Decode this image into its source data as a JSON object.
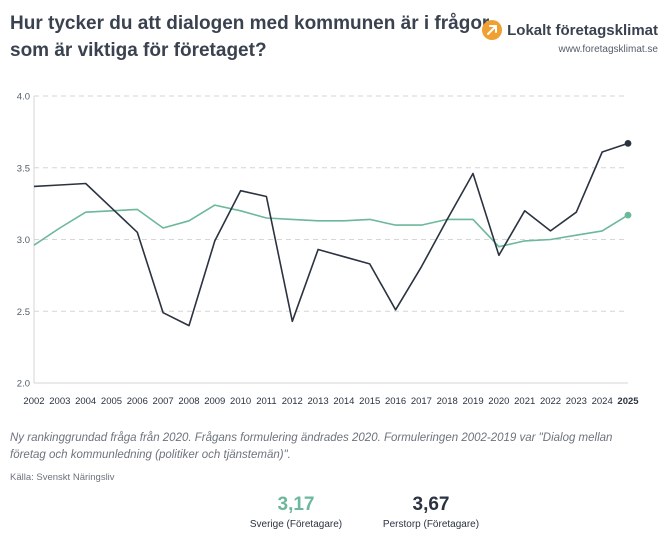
{
  "header": {
    "title": "Hur tycker du att dialogen med kommunen är i frågor som är viktiga för företaget?",
    "brand_name": "Lokalt företagsklimat",
    "brand_url": "www.foretagsklimat.se"
  },
  "colors": {
    "sverige": "#6bb89a",
    "perstorp": "#2b3340",
    "grid": "#d6d6d6",
    "brand": "#f0a030"
  },
  "chart_data": {
    "type": "line",
    "title": "Hur tycker du att dialogen med kommunen är i frågor som är viktiga för företaget?",
    "x": [
      "2002",
      "2003",
      "2004",
      "2005",
      "2006",
      "2007",
      "2008",
      "2009",
      "2010",
      "2011",
      "2012",
      "2013",
      "2014",
      "2015",
      "2016",
      "2017",
      "2018",
      "2019",
      "2020",
      "2021",
      "2022",
      "2023",
      "2024",
      "2025"
    ],
    "x_highlight": "2025",
    "y_ticks": [
      "2.0",
      "2.5",
      "3.0",
      "3.5",
      "4.0"
    ],
    "ylim": [
      2.0,
      4.0
    ],
    "series": [
      {
        "name": "Sverige (Företagare)",
        "color": "#6bb89a",
        "values": [
          2.96,
          3.08,
          3.19,
          3.2,
          3.21,
          3.08,
          3.13,
          3.24,
          3.2,
          3.15,
          3.14,
          3.13,
          3.13,
          3.14,
          3.1,
          3.1,
          3.14,
          3.14,
          2.95,
          2.99,
          3.0,
          3.03,
          3.06,
          3.17
        ]
      },
      {
        "name": "Perstorp (Företagare)",
        "color": "#2b3340",
        "values": [
          3.37,
          3.38,
          3.39,
          3.22,
          3.05,
          2.49,
          2.4,
          2.99,
          3.34,
          3.3,
          2.43,
          2.93,
          2.88,
          2.83,
          2.51,
          2.81,
          3.14,
          3.46,
          2.89,
          3.2,
          3.06,
          3.19,
          3.61,
          3.67
        ]
      }
    ]
  },
  "footnote": "Ny rankinggrundad fråga från 2020. Frågans formulering ändrades 2020. Formuleringen 2002-2019 var \"Dialog mellan företag och kommunledning (politiker och tjänstemän)\".",
  "source": "Källa: Svenskt Näringsliv",
  "stats": {
    "sverige": {
      "value": "3,17",
      "label": "Sverige (Företagare)"
    },
    "perstorp": {
      "value": "3,67",
      "label": "Perstorp (Företagare)"
    }
  }
}
